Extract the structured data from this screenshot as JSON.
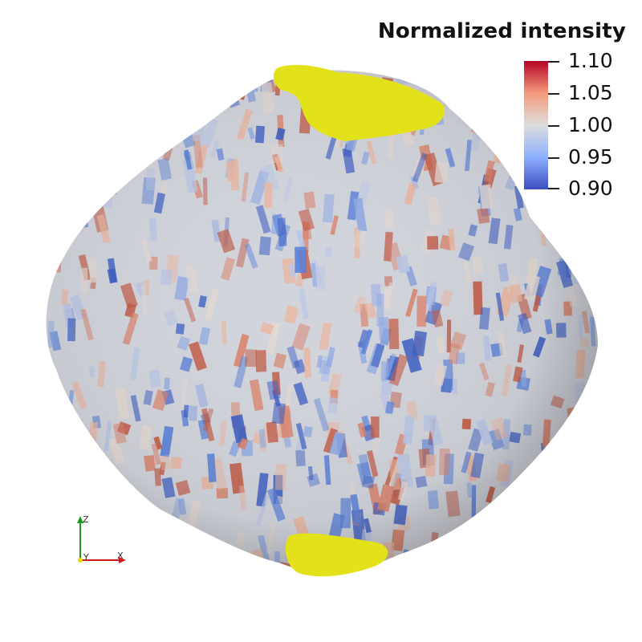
{
  "colorbar": {
    "title": "Normalized intensity",
    "ticks": [
      "1.10",
      "1.05",
      "1.00",
      "0.95",
      "0.90"
    ],
    "min": 0.9,
    "max": 1.1,
    "colormap": [
      "#3b4cc0",
      "#8db0fe",
      "#dddddd",
      "#f49a7b",
      "#b40426"
    ]
  },
  "axes": {
    "z_label": "Z",
    "y_label": "Y",
    "x_label": "X",
    "z_color": "#1a9b1a",
    "x_color": "#cc1a1a",
    "y_color": "#e6d800"
  },
  "colors": {
    "masked_region": "#e3e21a",
    "surface_base": "#d2d4dc",
    "high": "#c85a44",
    "low": "#3d63c8"
  }
}
